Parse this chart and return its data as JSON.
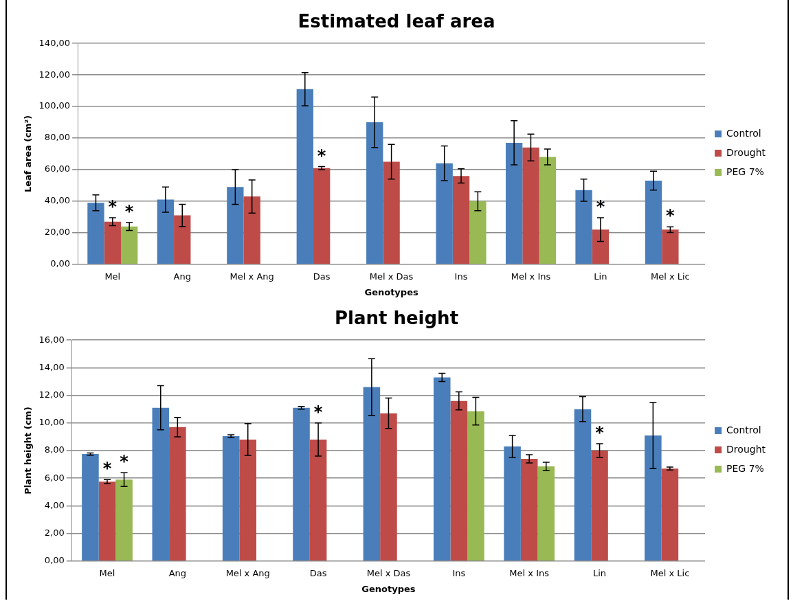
{
  "chart_data": [
    {
      "type": "bar",
      "title": "Estimated leaf area",
      "xlabel": "Genotypes",
      "ylabel": "Leaf area (cm²)",
      "categories": [
        "Mel",
        "Ang",
        "Mel x Ang",
        "Das",
        "Mel x Das",
        "Ins",
        "Mel x Ins",
        "Lin",
        "Mel x Lic"
      ],
      "series": [
        {
          "name": "Control",
          "color": "#4a7ebb",
          "values": [
            39,
            41,
            49,
            111,
            90,
            64,
            77,
            47,
            53
          ],
          "errors": [
            5,
            8,
            11,
            10.5,
            16,
            11,
            14,
            7,
            6
          ]
        },
        {
          "name": "Drought",
          "color": "#be4b48",
          "values": [
            27,
            31,
            43,
            61,
            65,
            56,
            74,
            22,
            22
          ],
          "errors": [
            2.5,
            7,
            10.5,
            1,
            11,
            4.5,
            8.5,
            7.5,
            1.8
          ]
        },
        {
          "name": "PEG 7%",
          "color": "#98b954",
          "values": [
            24,
            null,
            null,
            null,
            null,
            40,
            68,
            null,
            null
          ],
          "errors": [
            2.5,
            null,
            null,
            null,
            null,
            6,
            5,
            null,
            null
          ]
        }
      ],
      "ylim": [
        0,
        140
      ],
      "yticks": [
        {
          "value": 0,
          "label": "0,00"
        },
        {
          "value": 20,
          "label": "20,00"
        },
        {
          "value": 40,
          "label": "40,00"
        },
        {
          "value": 60,
          "label": "60,00"
        },
        {
          "value": 80,
          "label": "80,00"
        },
        {
          "value": 100,
          "label": "100,00"
        },
        {
          "value": 120,
          "label": "120,00"
        },
        {
          "value": 140,
          "label": "140,00"
        }
      ],
      "grid": "y",
      "legend": "right",
      "annotations": [
        {
          "text": "*",
          "x": "Mel",
          "y": 27
        },
        {
          "text": "*",
          "x": "Mel",
          "y": 24
        },
        {
          "text": "*",
          "x": "Das",
          "y": 61
        },
        {
          "text": "*",
          "x": "Lin",
          "y": 22
        },
        {
          "text": "*",
          "x": "Mel x Lic",
          "y": 22
        }
      ]
    },
    {
      "type": "bar",
      "title": "Plant height",
      "xlabel": "Genotypes",
      "ylabel": "Plant height (cm)",
      "categories": [
        "Mel",
        "Ang",
        "Mel x Ang",
        "Das",
        "Mel x Das",
        "Ins",
        "Mel x Ins",
        "Lin",
        "Mel x Lic"
      ],
      "series": [
        {
          "name": "Control",
          "color": "#4a7ebb",
          "values": [
            7.75,
            11.1,
            9.05,
            11.1,
            12.6,
            13.3,
            8.3,
            11.0,
            9.1
          ],
          "errors": [
            0.08,
            1.6,
            0.1,
            0.1,
            2.05,
            0.3,
            0.8,
            0.9,
            2.4
          ]
        },
        {
          "name": "Drought",
          "color": "#be4b48",
          "values": [
            5.75,
            9.7,
            8.8,
            8.8,
            10.7,
            11.6,
            7.4,
            8.0,
            6.7
          ],
          "errors": [
            0.15,
            0.7,
            1.15,
            1.2,
            1.1,
            0.65,
            0.3,
            0.5,
            0.1
          ]
        },
        {
          "name": "PEG 7%",
          "color": "#98b954",
          "values": [
            5.9,
            null,
            null,
            null,
            null,
            10.85,
            6.85,
            null,
            null
          ],
          "errors": [
            0.5,
            null,
            null,
            null,
            null,
            1.0,
            0.3,
            null,
            null
          ]
        }
      ],
      "ylim": [
        0,
        16
      ],
      "yticks": [
        {
          "value": 0,
          "label": "0,00"
        },
        {
          "value": 2,
          "label": "2,00"
        },
        {
          "value": 4,
          "label": "4,00"
        },
        {
          "value": 6,
          "label": "6,00"
        },
        {
          "value": 8,
          "label": "8,00"
        },
        {
          "value": 10,
          "label": "10,00"
        },
        {
          "value": 12,
          "label": "12,00"
        },
        {
          "value": 14,
          "label": "14,00"
        },
        {
          "value": 16,
          "label": "16,00"
        }
      ],
      "grid": "y",
      "legend": "right",
      "annotations": [
        {
          "text": "*",
          "x": "Mel",
          "y": 5.75
        },
        {
          "text": "*",
          "x": "Mel",
          "y": 5.9
        },
        {
          "text": "*",
          "x": "Das",
          "y": 8.8
        },
        {
          "text": "*",
          "x": "Lin",
          "y": 8.0
        }
      ]
    }
  ]
}
